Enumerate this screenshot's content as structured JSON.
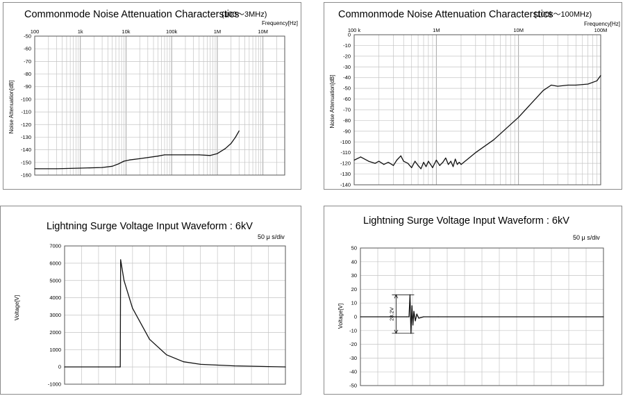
{
  "chart_data": [
    {
      "type": "line",
      "title": "Commonmode Noise Attenuation Characterstics",
      "subtitle": "(100～3MHz)",
      "xlabel": "Frequency[Hz]",
      "ylabel": "Noise Attenuation[dB]",
      "xscale": "log",
      "xlim": [
        100,
        30000000
      ],
      "ylim": [
        -160,
        -50
      ],
      "x_ticks": [
        {
          "value": 100,
          "label": "100"
        },
        {
          "value": 1000,
          "label": "1k"
        },
        {
          "value": 10000,
          "label": "10k"
        },
        {
          "value": 100000,
          "label": "100k"
        },
        {
          "value": 1000000,
          "label": "1M"
        },
        {
          "value": 10000000,
          "label": "10M"
        }
      ],
      "y_ticks": [
        -50,
        -60,
        -70,
        -80,
        -90,
        -100,
        -110,
        -120,
        -130,
        -140,
        -150,
        -160
      ],
      "grid": true,
      "series": [
        {
          "name": "attenuation",
          "x": [
            100,
            300,
            1000,
            3000,
            5000,
            7000,
            9000,
            12000,
            20000,
            50000,
            70000,
            100000,
            200000,
            400000,
            700000,
            1000000,
            1500000,
            2000000,
            2500000,
            3000000
          ],
          "y": [
            -155,
            -155,
            -154.5,
            -154,
            -153,
            -151,
            -149,
            -148,
            -147,
            -145,
            -144,
            -144,
            -144,
            -144,
            -144.5,
            -143,
            -139,
            -135,
            -130,
            -125
          ]
        }
      ]
    },
    {
      "type": "line",
      "title": "Commonmode Noise Attenuation Characterstics",
      "subtitle": "(100k～100MHz)",
      "xlabel": "Frequency[Hz]",
      "ylabel": "Noise Attenuation[dB]",
      "xscale": "log",
      "xlim": [
        100000,
        100000000
      ],
      "ylim": [
        -140,
        0
      ],
      "x_ticks": [
        {
          "value": 100000,
          "label": "100 k"
        },
        {
          "value": 1000000,
          "label": "1M"
        },
        {
          "value": 10000000,
          "label": "10M"
        },
        {
          "value": 100000000,
          "label": "100M"
        }
      ],
      "y_ticks": [
        0,
        -10,
        -20,
        -30,
        -40,
        -50,
        -60,
        -70,
        -80,
        -90,
        -100,
        -110,
        -120,
        -130,
        -140
      ],
      "grid": true,
      "series": [
        {
          "name": "attenuation",
          "x": [
            100000,
            120000,
            150000,
            180000,
            200000,
            230000,
            260000,
            300000,
            330000,
            370000,
            400000,
            450000,
            500000,
            550000,
            600000,
            650000,
            700000,
            750000,
            800000,
            850000,
            900000,
            1000000,
            1100000,
            1200000,
            1300000,
            1400000,
            1500000,
            1600000,
            1700000,
            1800000,
            1900000,
            2000000,
            3000000,
            5000000,
            10000000,
            20000000,
            25000000,
            30000000,
            40000000,
            50000000,
            70000000,
            90000000,
            100000000
          ],
          "y": [
            -117,
            -114,
            -118,
            -120,
            -118,
            -121,
            -119,
            -122,
            -117,
            -113,
            -118,
            -120,
            -124,
            -118,
            -122,
            -125,
            -119,
            -123,
            -118,
            -121,
            -124,
            -117,
            -122,
            -119,
            -115,
            -121,
            -118,
            -123,
            -116,
            -121,
            -119,
            -121,
            -110,
            -98,
            -77,
            -52,
            -47,
            -48,
            -47,
            -47,
            -46,
            -43,
            -38
          ]
        }
      ]
    },
    {
      "type": "line",
      "title": "Lightning Surge Voltage Input Waveform : 6kV",
      "annotation": "50 μ s/div",
      "xlabel": "",
      "ylabel": "Voltage[V]",
      "xlim": [
        0,
        650
      ],
      "ylim": [
        -1000,
        7000
      ],
      "y_ticks": [
        7000,
        6000,
        5000,
        4000,
        3000,
        2000,
        1000,
        0,
        -1000
      ],
      "grid": true,
      "series": [
        {
          "name": "voltage",
          "x": [
            0,
            100,
            150,
            160,
            164,
            165,
            175,
            200,
            250,
            300,
            350,
            400,
            500,
            600,
            650
          ],
          "y": [
            0,
            0,
            0,
            0,
            0,
            6200,
            5000,
            3400,
            1600,
            700,
            300,
            150,
            60,
            20,
            0
          ]
        }
      ]
    },
    {
      "type": "line",
      "title": "Lightning Surge Voltage Input Waveform : 6kV",
      "annotation": "50 μ s/div",
      "xlabel": "",
      "ylabel": "Voltage[V]",
      "xlim": [
        0,
        500
      ],
      "ylim": [
        -50,
        50
      ],
      "y_ticks": [
        50,
        40,
        30,
        20,
        10,
        0,
        -10,
        -20,
        -30,
        -40,
        -50
      ],
      "grid": true,
      "measurement": "28.2V",
      "series": [
        {
          "name": "voltage",
          "x": [
            0,
            60,
            95,
            100,
            102,
            104,
            106,
            108,
            110,
            113,
            116,
            120,
            130,
            160,
            250,
            500
          ],
          "y": [
            0,
            0,
            0,
            0,
            16,
            -12,
            8,
            -6,
            4,
            -3,
            2,
            -1,
            0,
            0,
            0,
            0
          ]
        }
      ]
    }
  ]
}
